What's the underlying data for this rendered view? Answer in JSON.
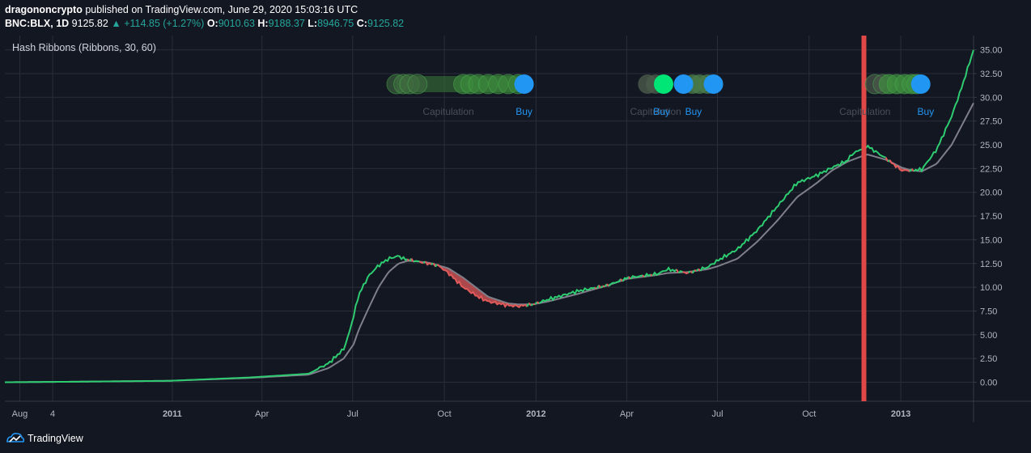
{
  "header": {
    "author": "dragononcrypto",
    "published": "published on TradingView.com, June 29, 2020 15:03:16 UTC",
    "symbol": "BNC:BLX, 1D",
    "price": "9125.82",
    "change_arrow": "▲",
    "change": "+114.85 (+1.27%)",
    "o_label": "O:",
    "o_value": "9010.63",
    "h_label": "H:",
    "h_value": "9188.37",
    "l_label": "L:",
    "l_value": "8946.75",
    "c_label": "C:",
    "c_value": "9125.82"
  },
  "indicator_label": "Hash Ribbons (Ribbons, 30, 60)",
  "footer": {
    "brand": "TradingView"
  },
  "colors": {
    "background": "#131722",
    "grid": "#2a2e39",
    "fast_line": "#2ecc71",
    "slow_line": "#7f7f8a",
    "capitulation_fill": "#e05a5a",
    "buy_marker": "#2196f3",
    "vertical_marker": "#e04848"
  },
  "chart_data": {
    "type": "line",
    "title": "Hash Ribbons (Ribbons, 30, 60)",
    "x_tick_labels": [
      "Aug",
      "4",
      "2011",
      "Apr",
      "Jul",
      "Oct",
      "2012",
      "Apr",
      "Jul",
      "Oct",
      "2013"
    ],
    "x_tick_bold": [
      false,
      false,
      true,
      false,
      false,
      false,
      true,
      false,
      false,
      false,
      true
    ],
    "x_tick_positions_days": [
      0,
      33,
      153,
      243,
      334,
      426,
      518,
      609,
      700,
      792,
      884
    ],
    "y_ticks": [
      0,
      2.5,
      5,
      7.5,
      10,
      12.5,
      15,
      17.5,
      20,
      22.5,
      25,
      27.5,
      30,
      32.5,
      35
    ],
    "y_tick_labels": [
      "0.00",
      "2.50",
      "5.00",
      "7.50",
      "10.00",
      "12.50",
      "15.00",
      "17.50",
      "20.00",
      "22.50",
      "25.00",
      "27.50",
      "30.00",
      "32.50",
      "35.00"
    ],
    "ylim": [
      -2.0,
      36.5
    ],
    "xlim_days": [
      -15,
      957
    ],
    "series": [
      {
        "name": "",
        "role": "fast",
        "x_days": [
          -15,
          50,
          150,
          230,
          290,
          310,
          325,
          330,
          335,
          340,
          350,
          360,
          370,
          380,
          385,
          395,
          420,
          430,
          445,
          460,
          470,
          480,
          490,
          500,
          515,
          530,
          560,
          590,
          610,
          625,
          640,
          650,
          670,
          690,
          700,
          720,
          740,
          760,
          780,
          800,
          815,
          830,
          835,
          850,
          870,
          885,
          895,
          905,
          920,
          935,
          945,
          957
        ],
        "y": [
          0,
          0.05,
          0.15,
          0.5,
          0.9,
          2.0,
          3.5,
          5.0,
          7.0,
          9.2,
          11.2,
          12.3,
          13.0,
          13.3,
          13.0,
          12.8,
          12.3,
          11.5,
          10.0,
          9.0,
          8.5,
          8.3,
          8.1,
          8.0,
          8.2,
          8.7,
          9.6,
          10.2,
          11.0,
          11.2,
          11.4,
          11.9,
          11.5,
          12.1,
          12.8,
          14.0,
          16.0,
          18.5,
          21.0,
          21.8,
          22.6,
          23.3,
          24.0,
          24.9,
          23.5,
          22.3,
          22.3,
          22.4,
          24.5,
          28.0,
          31.0,
          35.0
        ]
      },
      {
        "name": "",
        "role": "slow",
        "x_days": [
          -15,
          50,
          150,
          230,
          290,
          310,
          325,
          335,
          340,
          350,
          360,
          370,
          380,
          390,
          410,
          430,
          445,
          460,
          470,
          490,
          500,
          515,
          530,
          560,
          590,
          610,
          625,
          640,
          650,
          670,
          690,
          700,
          720,
          740,
          760,
          780,
          800,
          815,
          830,
          850,
          870,
          885,
          895,
          905,
          920,
          935,
          945,
          957
        ],
        "y": [
          0,
          0.05,
          0.15,
          0.45,
          0.8,
          1.5,
          2.5,
          4.0,
          5.5,
          7.8,
          10.0,
          11.6,
          12.5,
          12.8,
          12.6,
          12.0,
          11.0,
          9.8,
          9.0,
          8.3,
          8.2,
          8.2,
          8.5,
          9.3,
          10.2,
          10.9,
          11.1,
          11.3,
          11.5,
          11.6,
          11.9,
          12.2,
          13.0,
          14.8,
          17.0,
          19.5,
          21.0,
          22.3,
          23.2,
          24.0,
          23.4,
          22.6,
          22.3,
          22.2,
          23.0,
          25.0,
          27.0,
          29.4
        ]
      }
    ],
    "vertical_marker_day": 847,
    "signals": [
      {
        "label": "Capitulation",
        "day": 430,
        "type": "capitulation"
      },
      {
        "label": "Buy",
        "day": 506,
        "type": "buy"
      },
      {
        "label": "Capitulation",
        "day": 638,
        "type": "capitulation"
      },
      {
        "label": "Buy",
        "day": 644,
        "type": "buy"
      },
      {
        "label": "Buy",
        "day": 676,
        "type": "buy"
      },
      {
        "label": "Capitulation",
        "day": 848,
        "type": "capitulation"
      },
      {
        "label": "Buy",
        "day": 909,
        "type": "buy"
      }
    ],
    "ribbon_markers": {
      "group1_days": [
        378,
        385,
        391,
        399,
        445,
        452,
        460,
        470,
        480,
        490,
        500
      ],
      "group1_buy_day": 506,
      "group2_days": [
        630,
        638
      ],
      "group2_bright_day": 646,
      "group2_buy_day": 666,
      "group3_days": [
        675,
        682,
        690
      ],
      "group3_buy_day": 696,
      "group4_days": [
        858,
        866,
        872,
        880,
        888,
        895,
        900
      ],
      "group4_buy_day": 904
    }
  }
}
